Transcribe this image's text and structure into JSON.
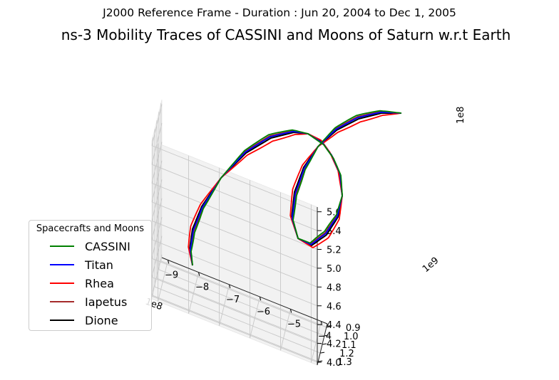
{
  "chart_data": {
    "type": "line",
    "subtitle": "J2000 Reference Frame - Duration : Jun 20, 2004 to Dec 1, 2005",
    "title": "ns-3 Mobility Traces of CASSINI and Moons of Saturn w.r.t Earth",
    "projection": "3d",
    "axes": {
      "x": {
        "ticks": [
          -9,
          -8,
          -7,
          -6,
          -5,
          -4
        ],
        "offset_label": "1e8",
        "range": [
          -9.2,
          -3.8
        ]
      },
      "y": {
        "ticks": [
          0.9,
          1.0,
          1.1,
          1.2,
          1.3
        ],
        "offset_label": "1e9",
        "range": [
          0.86,
          1.34
        ]
      },
      "z": {
        "ticks": [
          "4.0",
          "4.2",
          "4.4",
          "4.6",
          "4.8",
          "5.0",
          "5.2",
          "5.4",
          "5.6"
        ],
        "offset_label": "1e8",
        "range": [
          3.97,
          5.65
        ]
      }
    },
    "grid": true,
    "legend": {
      "title": "Spacecrafts and Moons",
      "placement": "lower-left",
      "entries": [
        {
          "name": "CASSINI",
          "color": "#008000"
        },
        {
          "name": "Titan",
          "color": "#0000ff"
        },
        {
          "name": "Rhea",
          "color": "#ff0000"
        },
        {
          "name": "Iapetus",
          "color": "#a52a2a"
        },
        {
          "name": "Dione",
          "color": "#000000"
        }
      ]
    },
    "series": [
      {
        "name": "CASSINI",
        "color": "#008000",
        "t0": 0.004,
        "wobble": 0.008
      },
      {
        "name": "Titan",
        "color": "#0000ff",
        "t0": 0.0,
        "wobble": 0.003
      },
      {
        "name": "Rhea",
        "color": "#ff0000",
        "t0": 0.0,
        "wobble": -0.007
      },
      {
        "name": "Iapetus",
        "color": "#a52a2a",
        "t0": 0.0,
        "wobble": 0.005
      },
      {
        "name": "Dione",
        "color": "#000000",
        "t0": 0.0,
        "wobble": 0.0
      }
    ]
  }
}
